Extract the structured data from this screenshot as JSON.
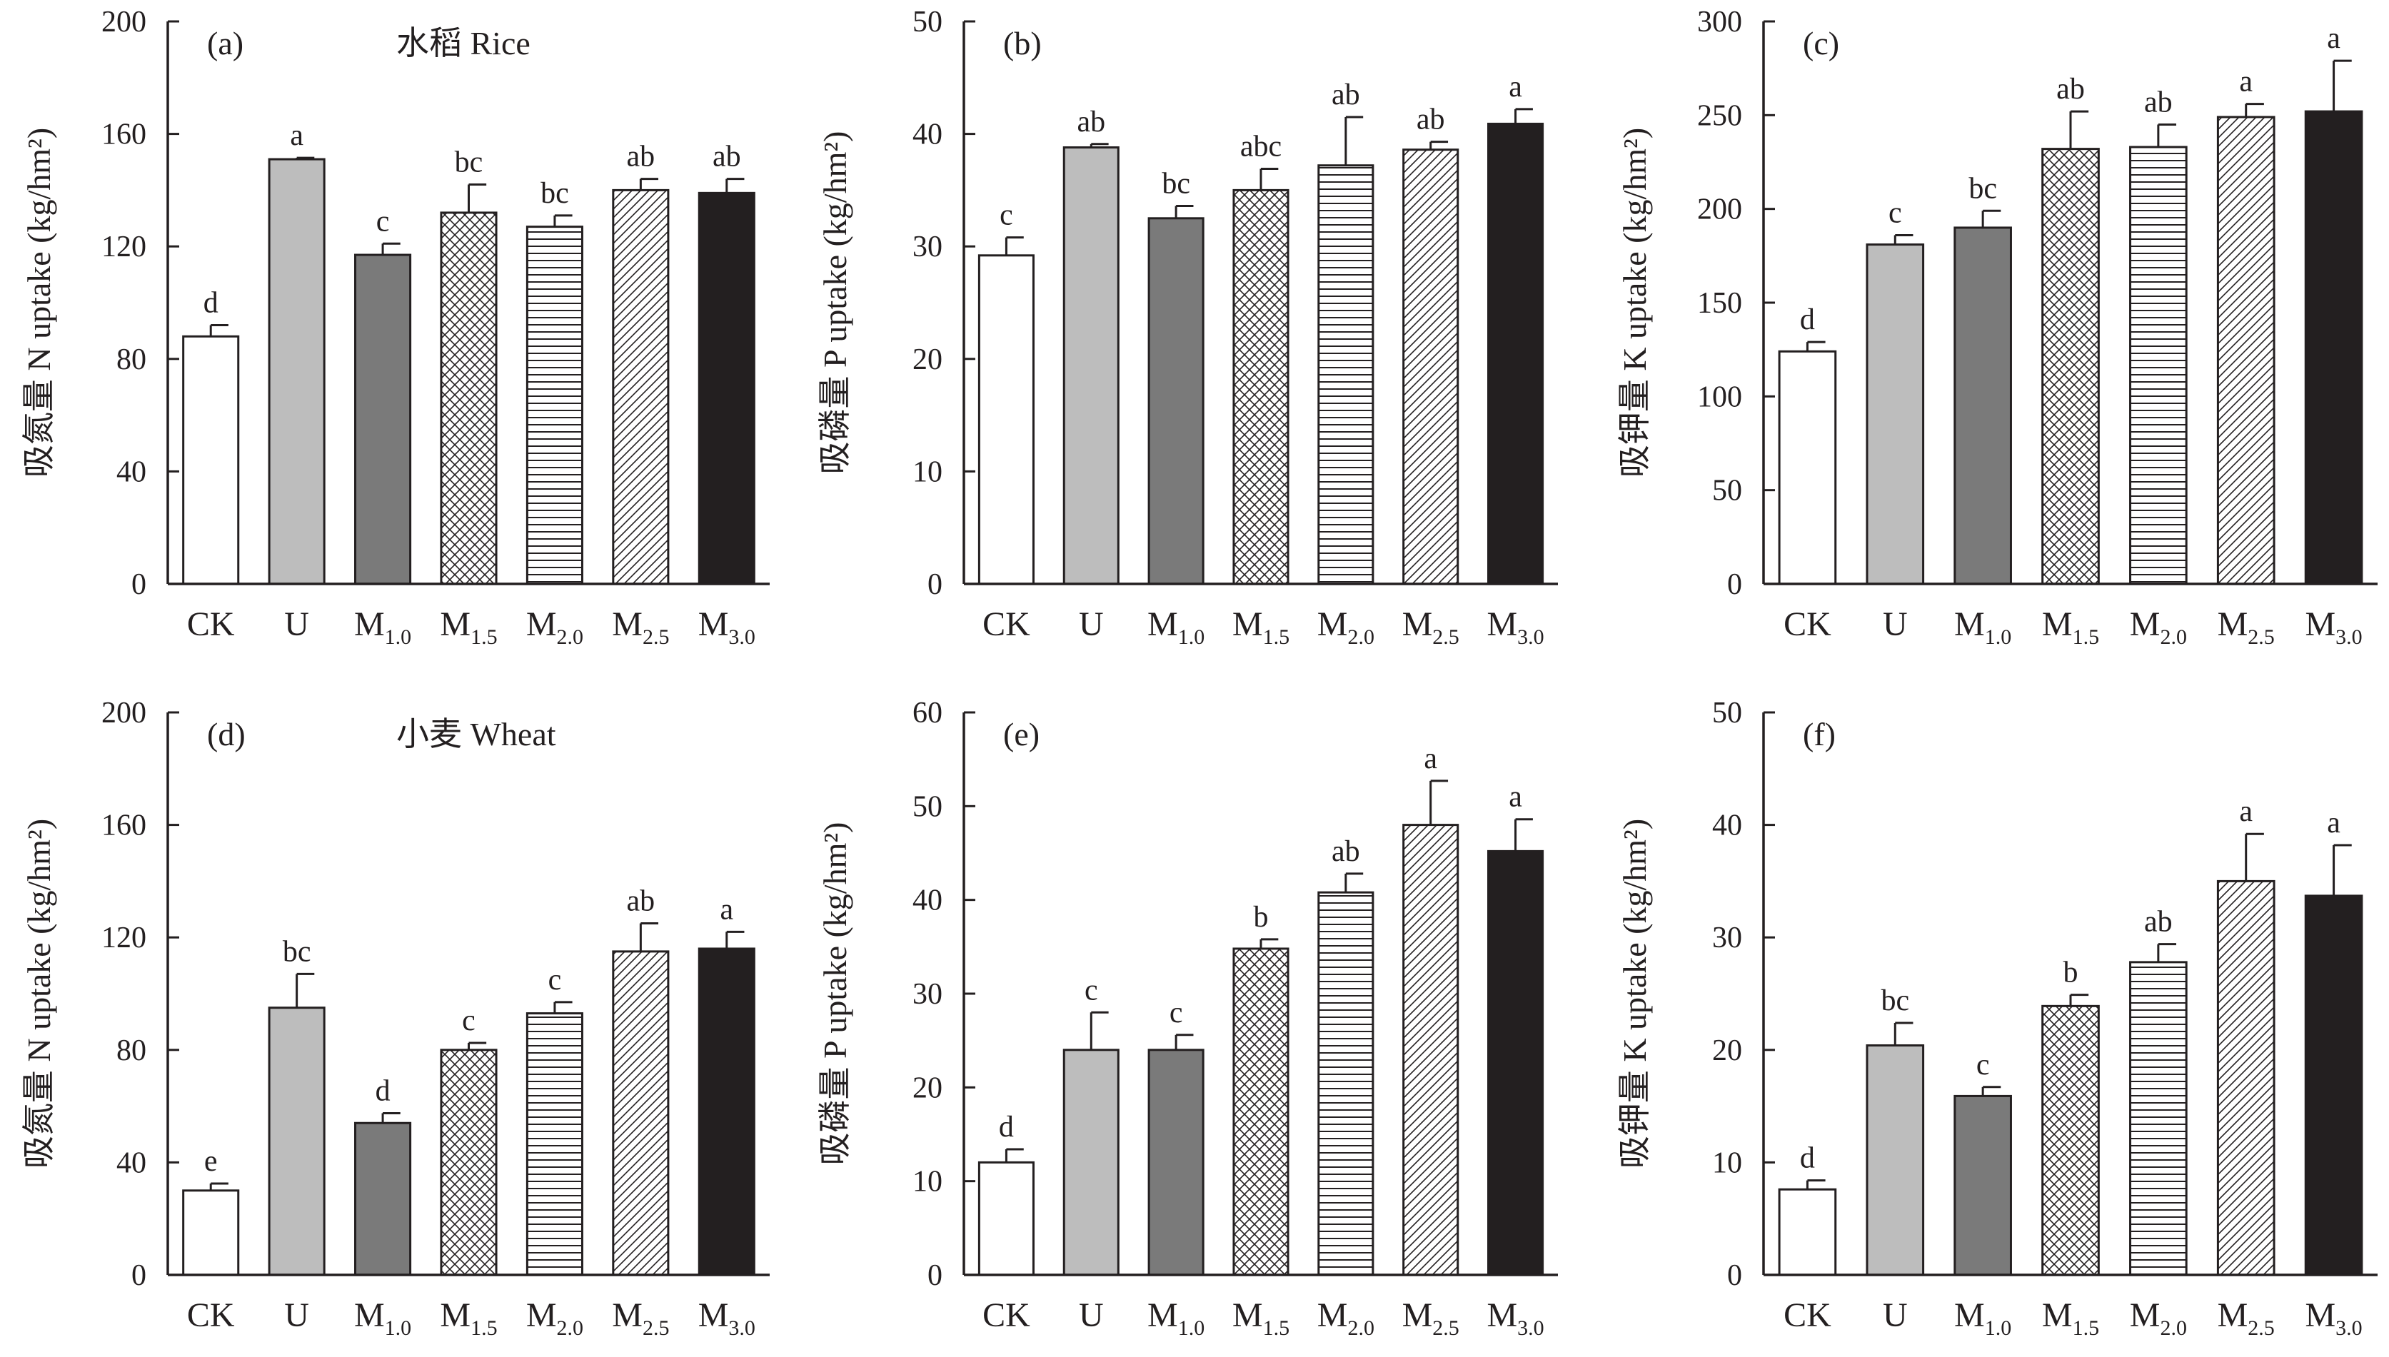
{
  "figure": {
    "patterns": [
      "white",
      "lightgray",
      "darkgray",
      "crosshatch",
      "hlines",
      "diagonal",
      "black"
    ],
    "colors": {
      "axis": "#231f20",
      "light_gray": "#bdbdbd",
      "dark_gray": "#7a7a7a",
      "black": "#231f20"
    }
  },
  "chart_data": [
    {
      "type": "bar",
      "panel": "(a)",
      "title": "水稻 Rice",
      "ylabel": "吸氮量 N uptake (kg/hm²)",
      "ylim": [
        0,
        200
      ],
      "yticks": [
        "0",
        "40",
        "80",
        "120",
        "160",
        "200"
      ],
      "categories": [
        {
          "main": "CK",
          "sub": ""
        },
        {
          "main": "U",
          "sub": ""
        },
        {
          "main": "M",
          "sub": "1.0"
        },
        {
          "main": "M",
          "sub": "1.5"
        },
        {
          "main": "M",
          "sub": "2.0"
        },
        {
          "main": "M",
          "sub": "2.5"
        },
        {
          "main": "M",
          "sub": "3.0"
        }
      ],
      "values": [
        88,
        151,
        117,
        132,
        127,
        140,
        139
      ],
      "errors": [
        4,
        0.5,
        4,
        10,
        4,
        4,
        5
      ],
      "letters": [
        "d",
        "a",
        "c",
        "bc",
        "bc",
        "ab",
        "ab"
      ]
    },
    {
      "type": "bar",
      "panel": "(b)",
      "title": "",
      "ylabel": "吸磷量 P uptake (kg/hm²)",
      "ylim": [
        0,
        50
      ],
      "yticks": [
        "0",
        "10",
        "20",
        "30",
        "40",
        "50"
      ],
      "categories": [
        {
          "main": "CK",
          "sub": ""
        },
        {
          "main": "U",
          "sub": ""
        },
        {
          "main": "M",
          "sub": "1.0"
        },
        {
          "main": "M",
          "sub": "1.5"
        },
        {
          "main": "M",
          "sub": "2.0"
        },
        {
          "main": "M",
          "sub": "2.5"
        },
        {
          "main": "M",
          "sub": "3.0"
        }
      ],
      "values": [
        29.2,
        38.8,
        32.5,
        35,
        37.2,
        38.6,
        40.9
      ],
      "errors": [
        1.6,
        0.3,
        1.1,
        1.9,
        4.3,
        0.7,
        1.3
      ],
      "letters": [
        "c",
        "ab",
        "bc",
        "abc",
        "ab",
        "ab",
        "a"
      ]
    },
    {
      "type": "bar",
      "panel": "(c)",
      "title": "",
      "ylabel": "吸钾量 K uptake (kg/hm²)",
      "ylim": [
        0,
        300
      ],
      "yticks": [
        "0",
        "50",
        "100",
        "150",
        "200",
        "250",
        "300"
      ],
      "categories": [
        {
          "main": "CK",
          "sub": ""
        },
        {
          "main": "U",
          "sub": ""
        },
        {
          "main": "M",
          "sub": "1.0"
        },
        {
          "main": "M",
          "sub": "1.5"
        },
        {
          "main": "M",
          "sub": "2.0"
        },
        {
          "main": "M",
          "sub": "2.5"
        },
        {
          "main": "M",
          "sub": "3.0"
        }
      ],
      "values": [
        124,
        181,
        190,
        232,
        233,
        249,
        252
      ],
      "errors": [
        5,
        5,
        9,
        20,
        12,
        7,
        27
      ],
      "letters": [
        "d",
        "c",
        "bc",
        "ab",
        "ab",
        "a",
        "a"
      ]
    },
    {
      "type": "bar",
      "panel": "(d)",
      "title": "小麦 Wheat",
      "ylabel": "吸氮量 N uptake (kg/hm²)",
      "ylim": [
        0,
        200
      ],
      "yticks": [
        "0",
        "40",
        "80",
        "120",
        "160",
        "200"
      ],
      "categories": [
        {
          "main": "CK",
          "sub": ""
        },
        {
          "main": "U",
          "sub": ""
        },
        {
          "main": "M",
          "sub": "1.0"
        },
        {
          "main": "M",
          "sub": "1.5"
        },
        {
          "main": "M",
          "sub": "2.0"
        },
        {
          "main": "M",
          "sub": "2.5"
        },
        {
          "main": "M",
          "sub": "3.0"
        }
      ],
      "values": [
        30,
        95,
        54,
        80,
        93,
        115,
        116
      ],
      "errors": [
        2.5,
        12,
        3.5,
        2.5,
        4,
        10,
        6
      ],
      "letters": [
        "e",
        "bc",
        "d",
        "c",
        "c",
        "ab",
        "a"
      ]
    },
    {
      "type": "bar",
      "panel": "(e)",
      "title": "",
      "ylabel": "吸磷量 P uptake (kg/hm²)",
      "ylim": [
        0,
        60
      ],
      "yticks": [
        "0",
        "10",
        "20",
        "30",
        "40",
        "50",
        "60"
      ],
      "categories": [
        {
          "main": "CK",
          "sub": ""
        },
        {
          "main": "U",
          "sub": ""
        },
        {
          "main": "M",
          "sub": "1.0"
        },
        {
          "main": "M",
          "sub": "1.5"
        },
        {
          "main": "M",
          "sub": "2.0"
        },
        {
          "main": "M",
          "sub": "2.5"
        },
        {
          "main": "M",
          "sub": "3.0"
        }
      ],
      "values": [
        12,
        24,
        24,
        34.8,
        40.8,
        48,
        45.2
      ],
      "errors": [
        1.4,
        4,
        1.6,
        1,
        2,
        4.7,
        3.4
      ],
      "letters": [
        "d",
        "c",
        "c",
        "b",
        "ab",
        "a",
        "a"
      ]
    },
    {
      "type": "bar",
      "panel": "(f)",
      "title": "",
      "ylabel": "吸钾量 K uptake (kg/hm²)",
      "ylim": [
        0,
        50
      ],
      "yticks": [
        "0",
        "10",
        "20",
        "30",
        "40",
        "50"
      ],
      "categories": [
        {
          "main": "CK",
          "sub": ""
        },
        {
          "main": "U",
          "sub": ""
        },
        {
          "main": "M",
          "sub": "1.0"
        },
        {
          "main": "M",
          "sub": "1.5"
        },
        {
          "main": "M",
          "sub": "2.0"
        },
        {
          "main": "M",
          "sub": "2.5"
        },
        {
          "main": "M",
          "sub": "3.0"
        }
      ],
      "values": [
        7.6,
        20.4,
        15.9,
        23.9,
        27.8,
        35,
        33.7
      ],
      "errors": [
        0.8,
        2,
        0.8,
        1,
        1.6,
        4.2,
        4.5
      ],
      "letters": [
        "d",
        "bc",
        "c",
        "b",
        "ab",
        "a",
        "a"
      ]
    }
  ]
}
